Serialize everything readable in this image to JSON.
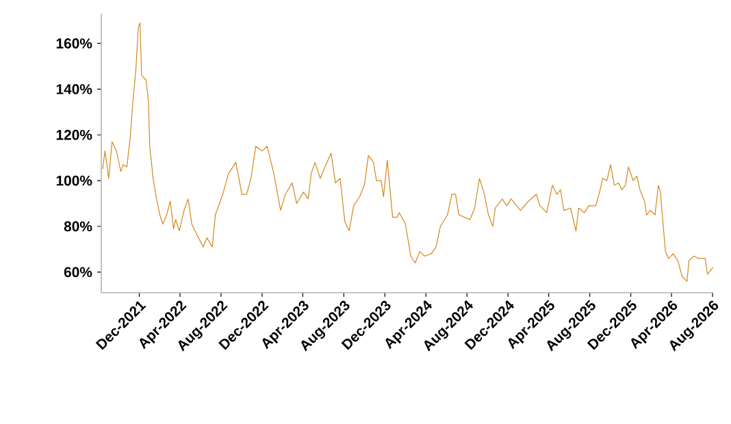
{
  "chart_data": {
    "type": "line",
    "color": "#d4861a",
    "line_style": "solid",
    "marker": "none",
    "grid": false,
    "legend": false,
    "xlim": [
      "2021-08-10",
      "2026-08-03"
    ],
    "xticks": [
      {
        "value": "2021-12-01",
        "label": "Dec-2021"
      },
      {
        "value": "2022-04-01",
        "label": "Apr-2022"
      },
      {
        "value": "2022-08-01",
        "label": "Aug-2022"
      },
      {
        "value": "2022-12-01",
        "label": "Dec-2022"
      },
      {
        "value": "2023-04-01",
        "label": "Apr-2023"
      },
      {
        "value": "2023-08-01",
        "label": "Aug-2023"
      },
      {
        "value": "2023-12-01",
        "label": "Dec-2023"
      },
      {
        "value": "2024-04-01",
        "label": "Apr-2024"
      },
      {
        "value": "2024-08-01",
        "label": "Aug-2024"
      },
      {
        "value": "2024-12-01",
        "label": "Dec-2024"
      },
      {
        "value": "2025-04-01",
        "label": "Apr-2025"
      },
      {
        "value": "2025-08-01",
        "label": "Aug-2025"
      },
      {
        "value": "2025-12-01",
        "label": "Dec-2025"
      },
      {
        "value": "2026-04-01",
        "label": "Apr-2026"
      },
      {
        "value": "2026-08-01",
        "label": "Aug-2026"
      }
    ],
    "ylim": [
      51,
      173
    ],
    "yticks": [
      {
        "value": 60,
        "label": "60%"
      },
      {
        "value": 80,
        "label": "80%"
      },
      {
        "value": 100,
        "label": "100%"
      },
      {
        "value": 120,
        "label": "120%"
      },
      {
        "value": 140,
        "label": "140%"
      },
      {
        "value": 160,
        "label": "160%"
      }
    ],
    "x": [
      "2021-08-14",
      "2021-08-21",
      "2021-09-01",
      "2021-09-11",
      "2021-09-24",
      "2021-10-07",
      "2021-10-14",
      "2021-10-25",
      "2021-11-04",
      "2021-11-11",
      "2021-11-21",
      "2021-11-28",
      "2021-12-03",
      "2021-12-08",
      "2021-12-21",
      "2021-12-28",
      "2022-01-01",
      "2022-01-11",
      "2022-01-20",
      "2022-01-31",
      "2022-02-09",
      "2022-02-20",
      "2022-03-03",
      "2022-03-13",
      "2022-03-19",
      "2022-03-30",
      "2022-04-13",
      "2022-04-25",
      "2022-05-06",
      "2022-05-19",
      "2022-06-09",
      "2022-06-20",
      "2022-07-06",
      "2022-07-15",
      "2022-08-06",
      "2022-08-23",
      "2022-09-14",
      "2022-10-02",
      "2022-10-16",
      "2022-10-29",
      "2022-11-12",
      "2022-12-01",
      "2022-12-16",
      "2023-01-05",
      "2023-01-25",
      "2023-02-08",
      "2023-02-28",
      "2023-03-14",
      "2023-04-03",
      "2023-04-17",
      "2023-04-26",
      "2023-05-07",
      "2023-05-23",
      "2023-06-06",
      "2023-06-24",
      "2023-07-07",
      "2023-07-21",
      "2023-08-04",
      "2023-08-17",
      "2023-08-30",
      "2023-09-17",
      "2023-10-01",
      "2023-10-13",
      "2023-10-28",
      "2023-11-06",
      "2023-11-20",
      "2023-11-27",
      "2023-12-08",
      "2023-12-17",
      "2023-12-24",
      "2024-01-06",
      "2024-01-13",
      "2024-01-31",
      "2024-02-16",
      "2024-02-29",
      "2024-03-14",
      "2024-03-28",
      "2024-04-17",
      "2024-05-01",
      "2024-05-14",
      "2024-06-04",
      "2024-06-17",
      "2024-06-28",
      "2024-07-08",
      "2024-07-25",
      "2024-08-10",
      "2024-08-24",
      "2024-09-07",
      "2024-09-20",
      "2024-10-04",
      "2024-10-14",
      "2024-10-17",
      "2024-10-24",
      "2024-11-14",
      "2024-11-27",
      "2024-12-10",
      "2025-01-07",
      "2025-01-31",
      "2025-02-23",
      "2025-03-06",
      "2025-03-26",
      "2025-04-12",
      "2025-04-25",
      "2025-05-06",
      "2025-05-16",
      "2025-06-05",
      "2025-06-21",
      "2025-06-29",
      "2025-07-16",
      "2025-07-29",
      "2025-08-19",
      "2025-09-01",
      "2025-09-08",
      "2025-09-21",
      "2025-10-02",
      "2025-10-13",
      "2025-10-26",
      "2025-11-04",
      "2025-11-15",
      "2025-11-24",
      "2025-12-08",
      "2025-12-19",
      "2025-12-28",
      "2026-01-11",
      "2026-01-17",
      "2026-01-28",
      "2026-02-11",
      "2026-02-21",
      "2026-02-27",
      "2026-03-07",
      "2026-03-14",
      "2026-03-23",
      "2026-04-06",
      "2026-04-20",
      "2026-05-03",
      "2026-05-17",
      "2026-05-23",
      "2026-06-06",
      "2026-06-20",
      "2026-07-10",
      "2026-07-17",
      "2026-08-02"
    ],
    "values": [
      105,
      113,
      101,
      117,
      113,
      104,
      107,
      106,
      119,
      133,
      149,
      167,
      169,
      146,
      144,
      135,
      115,
      101,
      93,
      85,
      81,
      85,
      91,
      79,
      83,
      78,
      87,
      92,
      81,
      77,
      71,
      75,
      71,
      85,
      94,
      103,
      108,
      94,
      94,
      101,
      115,
      113,
      115,
      103,
      87,
      94,
      99,
      90,
      95,
      92,
      103,
      108,
      101,
      106,
      112,
      99,
      101,
      82,
      78,
      89,
      93,
      98,
      111,
      108,
      100,
      100,
      93,
      109,
      95,
      84,
      84,
      86,
      81,
      67,
      64,
      69,
      67,
      68,
      71,
      80,
      85,
      94,
      94,
      85,
      84,
      83,
      88,
      101,
      95,
      85,
      81,
      80,
      88,
      92,
      89,
      92,
      87,
      91,
      94,
      89,
      86,
      98,
      94,
      96,
      87,
      88,
      78,
      88,
      86,
      89,
      89,
      96,
      101,
      100,
      107,
      98,
      99,
      96,
      98,
      106,
      100,
      102,
      96,
      91,
      85,
      87,
      85,
      98,
      95,
      81,
      69,
      66,
      68,
      65,
      58,
      56,
      65,
      67,
      66,
      66,
      59,
      62
    ]
  }
}
